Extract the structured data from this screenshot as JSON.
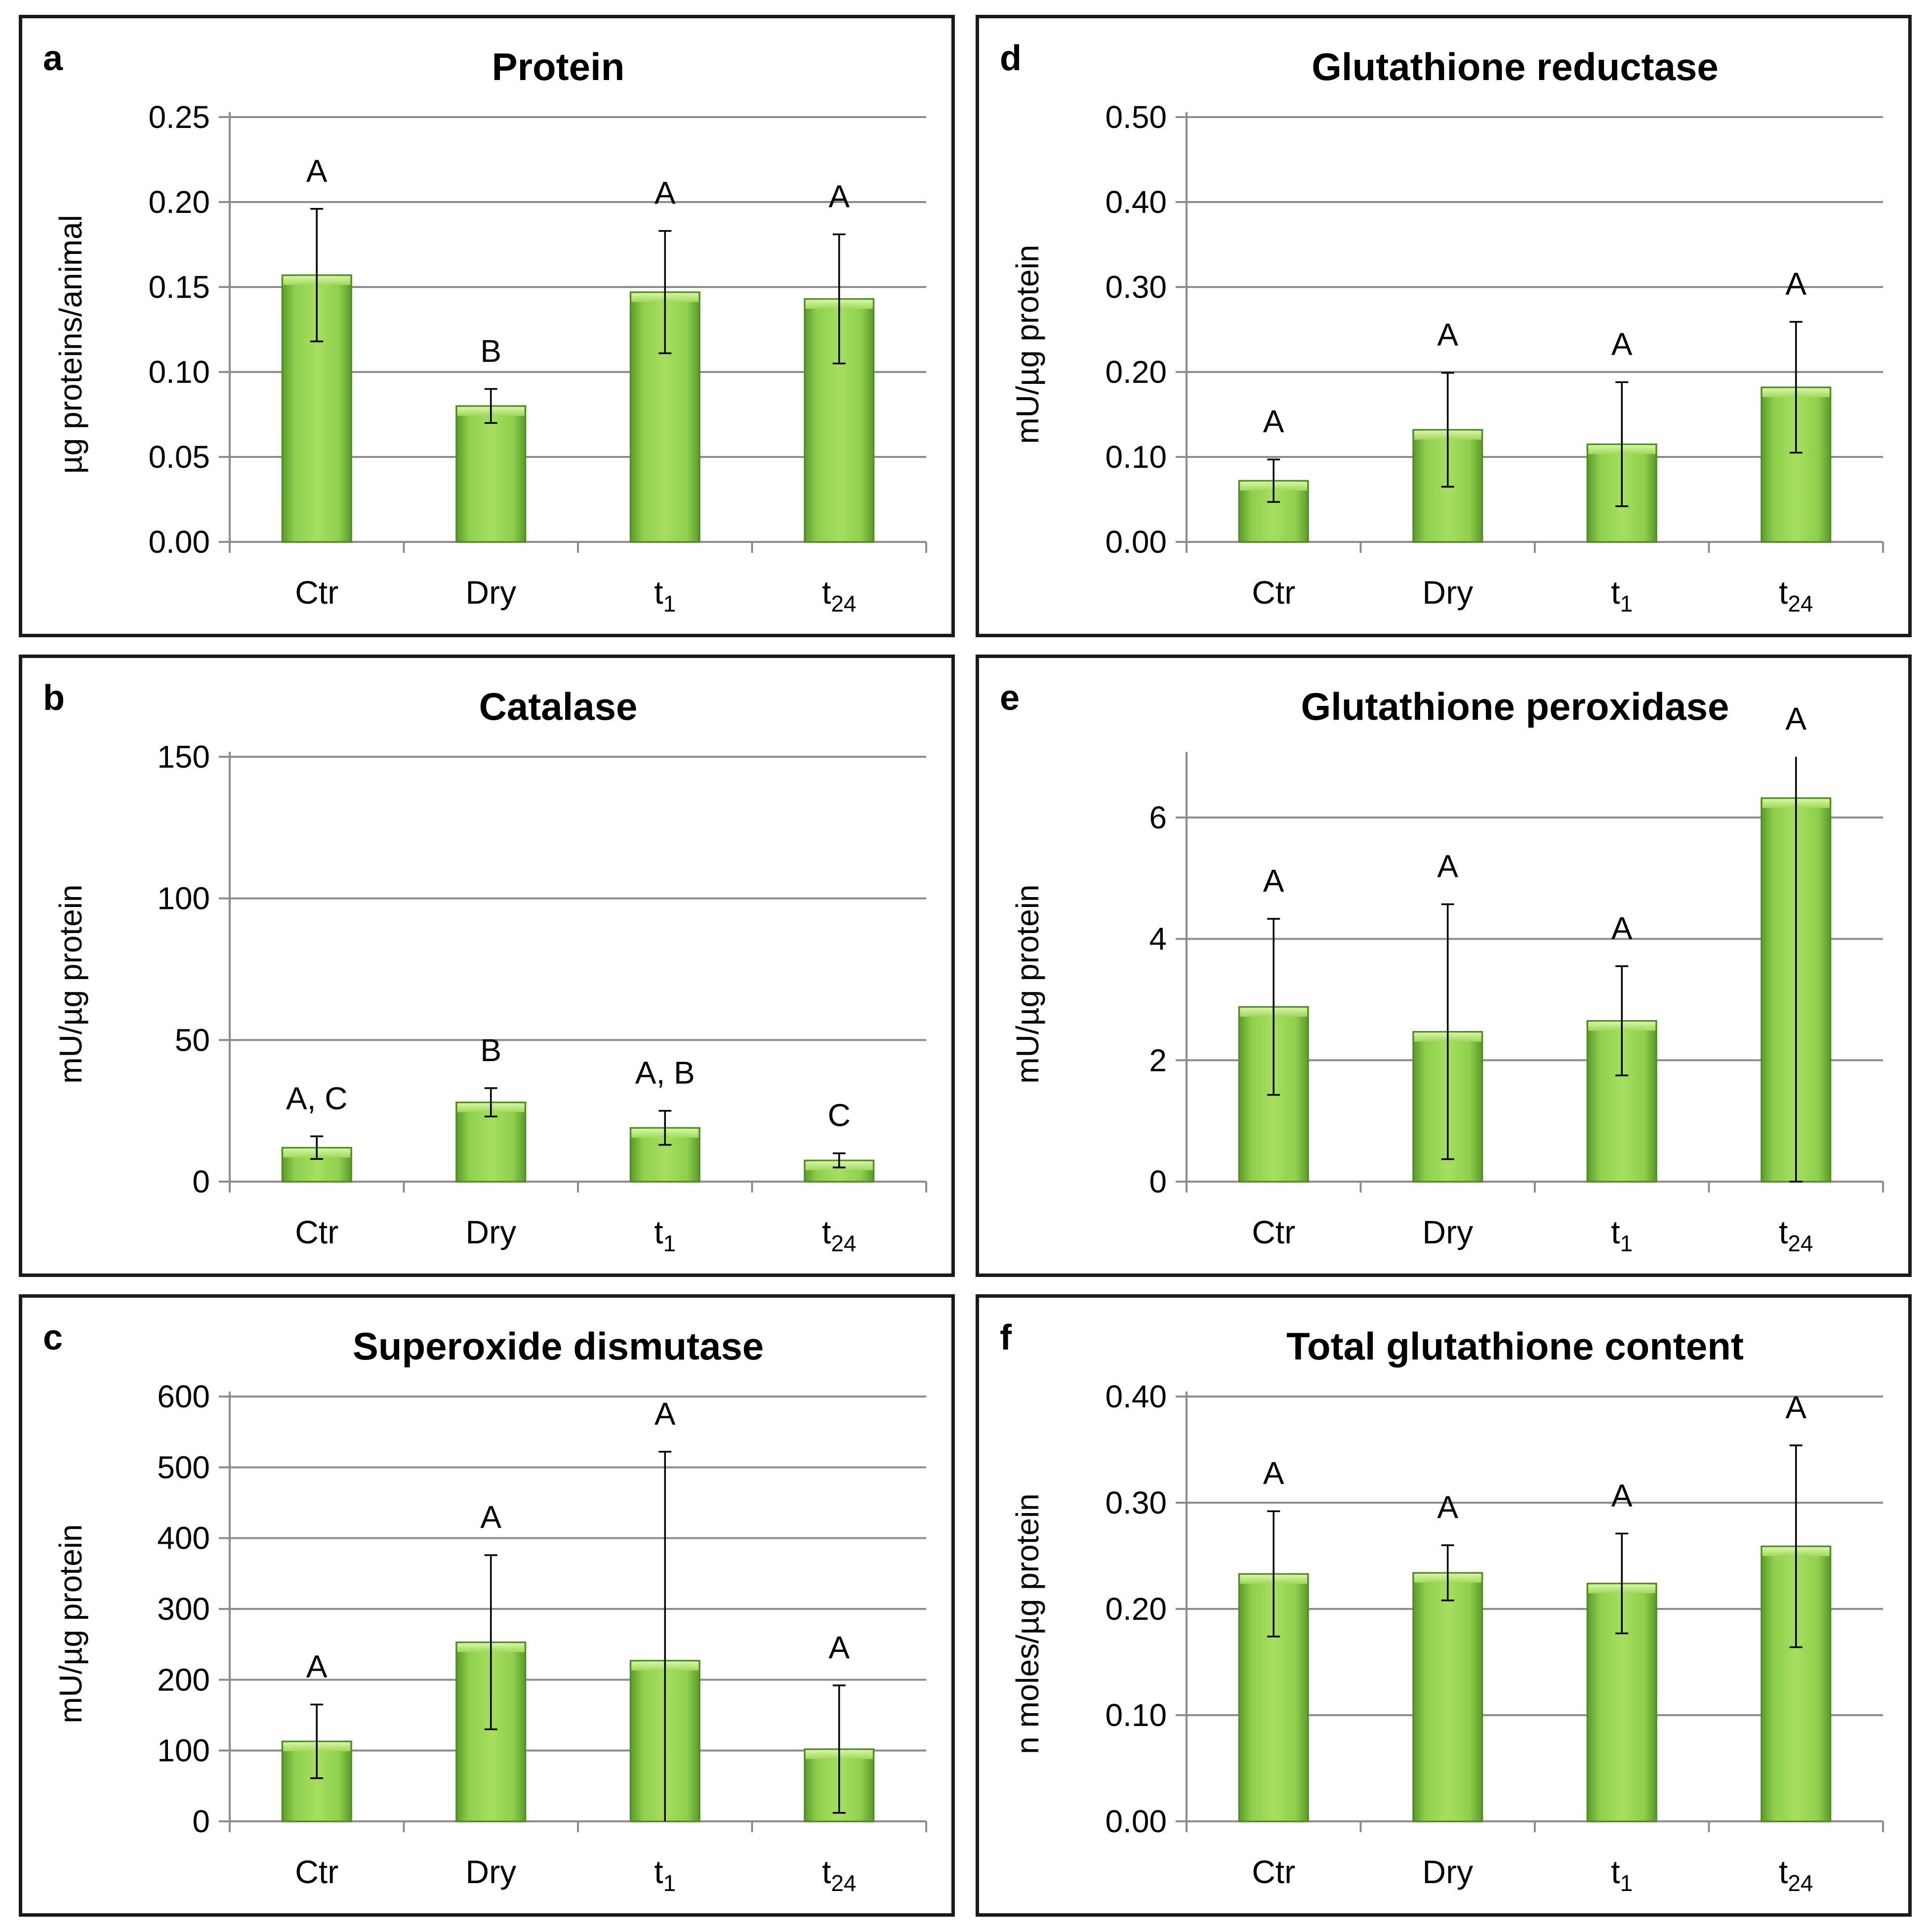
{
  "chart_data": [
    {
      "id": "a",
      "type": "bar",
      "title": "Protein",
      "ylabel": "µg proteins/animal",
      "xlabel": "",
      "categories": [
        {
          "main": "Ctr",
          "sub": ""
        },
        {
          "main": "Dry",
          "sub": ""
        },
        {
          "main": "t",
          "sub": "1"
        },
        {
          "main": "t",
          "sub": "24"
        }
      ],
      "values": [
        0.157,
        0.08,
        0.147,
        0.143
      ],
      "errors": [
        0.039,
        0.01,
        0.036,
        0.038
      ],
      "significance": [
        "A",
        "B",
        "A",
        "A"
      ],
      "ylim": [
        0,
        0.25
      ],
      "yticks": [
        0,
        0.05,
        0.1,
        0.15,
        0.2,
        0.25
      ],
      "ytick_labels": [
        "0.00",
        "0.05",
        "0.10",
        "0.15",
        "0.20",
        "0.25"
      ],
      "grid": true
    },
    {
      "id": "b",
      "type": "bar",
      "title": "Catalase",
      "ylabel": "mU/µg protein",
      "xlabel": "",
      "categories": [
        {
          "main": "Ctr",
          "sub": ""
        },
        {
          "main": "Dry",
          "sub": ""
        },
        {
          "main": "t",
          "sub": "1"
        },
        {
          "main": "t",
          "sub": "24"
        }
      ],
      "values": [
        12,
        28,
        19,
        7.5
      ],
      "errors": [
        4,
        5,
        6,
        2.5
      ],
      "significance": [
        "A, C",
        "B",
        "A, B",
        "C"
      ],
      "ylim": [
        0,
        150
      ],
      "yticks": [
        0,
        50,
        100,
        150
      ],
      "ytick_labels": [
        "0",
        "50",
        "100",
        "150"
      ],
      "grid": true
    },
    {
      "id": "c",
      "type": "bar",
      "title": "Superoxide dismutase",
      "ylabel": "mU/µg protein",
      "xlabel": "",
      "categories": [
        {
          "main": "Ctr",
          "sub": ""
        },
        {
          "main": "Dry",
          "sub": ""
        },
        {
          "main": "t",
          "sub": "1"
        },
        {
          "main": "t",
          "sub": "24"
        }
      ],
      "values": [
        113,
        253,
        227,
        102
      ],
      "errors": [
        52,
        123,
        295,
        90
      ],
      "significance": [
        "A",
        "A",
        "A",
        "A"
      ],
      "ylim": [
        0,
        600
      ],
      "yticks": [
        0,
        100,
        200,
        300,
        400,
        500,
        600
      ],
      "ytick_labels": [
        "0",
        "100",
        "200",
        "300",
        "400",
        "500",
        "600"
      ],
      "grid": true
    },
    {
      "id": "d",
      "type": "bar",
      "title": "Glutathione reductase",
      "ylabel": "mU/µg protein",
      "xlabel": "",
      "categories": [
        {
          "main": "Ctr",
          "sub": ""
        },
        {
          "main": "Dry",
          "sub": ""
        },
        {
          "main": "t",
          "sub": "1"
        },
        {
          "main": "t",
          "sub": "24"
        }
      ],
      "values": [
        0.072,
        0.132,
        0.115,
        0.182
      ],
      "errors": [
        0.025,
        0.067,
        0.073,
        0.077
      ],
      "significance": [
        "A",
        "A",
        "A",
        "A"
      ],
      "ylim": [
        0,
        0.5
      ],
      "yticks": [
        0,
        0.1,
        0.2,
        0.3,
        0.4,
        0.5
      ],
      "ytick_labels": [
        "0.00",
        "0.10",
        "0.20",
        "0.30",
        "0.40",
        "0.50"
      ],
      "grid": true
    },
    {
      "id": "e",
      "type": "bar",
      "title": "Glutathione peroxidase",
      "ylabel": "mU/µg protein",
      "xlabel": "",
      "categories": [
        {
          "main": "Ctr",
          "sub": ""
        },
        {
          "main": "Dry",
          "sub": ""
        },
        {
          "main": "t",
          "sub": "1"
        },
        {
          "main": "t",
          "sub": "24"
        }
      ],
      "values": [
        2.88,
        2.47,
        2.65,
        6.32
      ],
      "errors": [
        1.45,
        2.1,
        0.9,
        6.32
      ],
      "significance": [
        "A",
        "A",
        "A",
        "A"
      ],
      "ylim": [
        0,
        7
      ],
      "yticks": [
        0,
        2,
        4,
        6
      ],
      "ytick_labels": [
        "0",
        "2",
        "4",
        "6"
      ],
      "grid": true
    },
    {
      "id": "f",
      "type": "bar",
      "title": "Total glutathione content",
      "ylabel": "n moles/µg protein",
      "xlabel": "",
      "categories": [
        {
          "main": "Ctr",
          "sub": ""
        },
        {
          "main": "Dry",
          "sub": ""
        },
        {
          "main": "t",
          "sub": "1"
        },
        {
          "main": "t",
          "sub": "24"
        }
      ],
      "values": [
        0.233,
        0.234,
        0.224,
        0.259
      ],
      "errors": [
        0.059,
        0.026,
        0.047,
        0.095
      ],
      "significance": [
        "A",
        "A",
        "A",
        "A"
      ],
      "ylim": [
        0,
        0.4
      ],
      "yticks": [
        0,
        0.1,
        0.2,
        0.3,
        0.4
      ],
      "ytick_labels": [
        "0.00",
        "0.10",
        "0.20",
        "0.30",
        "0.40"
      ],
      "grid": true
    }
  ]
}
